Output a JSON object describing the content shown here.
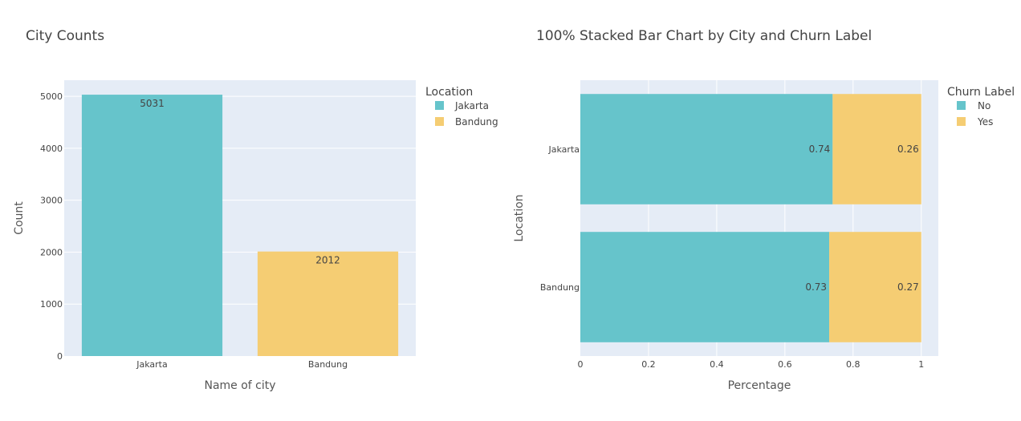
{
  "colors": {
    "teal": "#66C4CB",
    "yellow": "#F5CD73",
    "plot_bg": "#E5ECF6",
    "grid": "#FFFFFF"
  },
  "chart_data": [
    {
      "type": "bar",
      "title": "City Counts",
      "xlabel": "Name of city",
      "ylabel": "Count",
      "categories": [
        "Jakarta",
        "Bandung"
      ],
      "values": [
        5031,
        2012
      ],
      "data_labels": [
        "5031",
        "2012"
      ],
      "ylim": [
        0,
        5310
      ],
      "yticks": [
        0,
        1000,
        2000,
        3000,
        4000,
        5000
      ],
      "grid": true,
      "legend": {
        "title": "Location",
        "entries": [
          "Jakarta",
          "Bandung"
        ],
        "placement": "right"
      }
    },
    {
      "type": "bar",
      "orientation": "horizontal",
      "stacked": "percent",
      "title": "100% Stacked Bar Chart by City and Churn Label",
      "xlabel": "Percentage",
      "ylabel": "Location",
      "categories": [
        "Jakarta",
        "Bandung"
      ],
      "series": [
        {
          "name": "No",
          "values": [
            0.74,
            0.73
          ],
          "labels": [
            "0.74",
            "0.73"
          ]
        },
        {
          "name": "Yes",
          "values": [
            0.26,
            0.27
          ],
          "labels": [
            "0.26",
            "0.27"
          ]
        }
      ],
      "xlim": [
        0,
        1.05
      ],
      "xticks": [
        0,
        0.2,
        0.4,
        0.6,
        0.8,
        1
      ],
      "xtick_labels": [
        "0",
        "0.2",
        "0.4",
        "0.6",
        "0.8",
        "1"
      ],
      "grid": true,
      "legend": {
        "title": "Churn Label",
        "entries": [
          "No",
          "Yes"
        ],
        "placement": "right"
      }
    }
  ]
}
